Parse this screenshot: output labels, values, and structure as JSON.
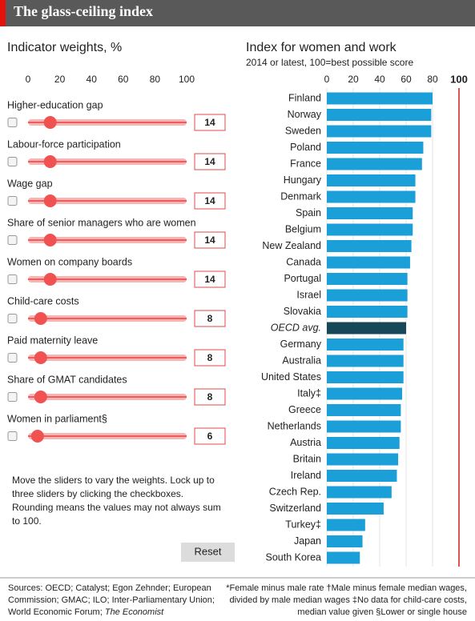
{
  "header": {
    "title": "The glass-ceiling index"
  },
  "weights": {
    "title": "Indicator weights, %",
    "xlim": [
      0,
      100
    ],
    "xticks": [
      0,
      20,
      40,
      60,
      80,
      100
    ],
    "items": [
      {
        "label": "Higher-education gap",
        "value": 14
      },
      {
        "label": "Labour-force participation",
        "value": 14
      },
      {
        "label": "Wage gap",
        "value": 14
      },
      {
        "label": "Share of senior managers who are women",
        "value": 14
      },
      {
        "label": "Women on company boards",
        "value": 14
      },
      {
        "label": "Child-care costs",
        "value": 8
      },
      {
        "label": "Paid maternity leave",
        "value": 8
      },
      {
        "label": "Share of GMAT candidates",
        "value": 8
      },
      {
        "label": "Women in parliament§",
        "value": 6
      }
    ]
  },
  "instructions": [
    "Move the sliders to vary the weights. Lock up to",
    "three sliders by clicking the checkboxes.",
    "Rounding means the values may not always sum",
    "to 100."
  ],
  "reset": "Reset",
  "chart_data": {
    "type": "bar",
    "orientation": "horizontal",
    "title": "Index for women and work",
    "subtitle": "2014 or latest, 100=best possible score",
    "categories": [
      "Finland",
      "Norway",
      "Sweden",
      "Poland",
      "France",
      "Hungary",
      "Denmark",
      "Spain",
      "Belgium",
      "New Zealand",
      "Canada",
      "Portugal",
      "Israel",
      "Slovakia",
      "OECD avg.",
      "Germany",
      "Australia",
      "United States",
      "Italy‡",
      "Greece",
      "Netherlands",
      "Austria",
      "Britain",
      "Ireland",
      "Czech Rep.",
      "Switzerland",
      "Turkey‡",
      "Japan",
      "South Korea"
    ],
    "values": [
      80,
      79,
      79,
      73,
      72,
      67,
      67,
      65,
      65,
      64,
      63,
      61,
      61,
      61,
      60,
      58,
      58,
      58,
      57,
      56,
      56,
      55,
      54,
      53,
      49,
      43,
      29,
      27,
      25
    ],
    "color": "#1a9fd9",
    "colors": [
      "#1a9fd9",
      "#1a9fd9",
      "#1a9fd9",
      "#1a9fd9",
      "#1a9fd9",
      "#1a9fd9",
      "#1a9fd9",
      "#1a9fd9",
      "#1a9fd9",
      "#1a9fd9",
      "#1a9fd9",
      "#1a9fd9",
      "#1a9fd9",
      "#1a9fd9",
      "#17485a",
      "#1a9fd9",
      "#1a9fd9",
      "#1a9fd9",
      "#1a9fd9",
      "#1a9fd9",
      "#1a9fd9",
      "#1a9fd9",
      "#1a9fd9",
      "#1a9fd9",
      "#1a9fd9",
      "#1a9fd9",
      "#1a9fd9",
      "#1a9fd9",
      "#1a9fd9"
    ],
    "xlim": [
      0,
      100
    ],
    "xticks": [
      0,
      20,
      40,
      60,
      80,
      100
    ],
    "reference_line": 100,
    "grid": true
  },
  "footer": {
    "sources": [
      "Sources: OECD; Catalyst; Egon Zehnder; European",
      "Commission; GMAC; ILO; Inter-Parliamentary Union;",
      "World Economic Forum;"
    ],
    "sources_italic": "The Economist",
    "notes": [
      "*Female minus male rate †Male minus female median wages,",
      "divided by male median wages ‡No data for child-care costs,",
      "median value given §Lower or single house"
    ]
  }
}
